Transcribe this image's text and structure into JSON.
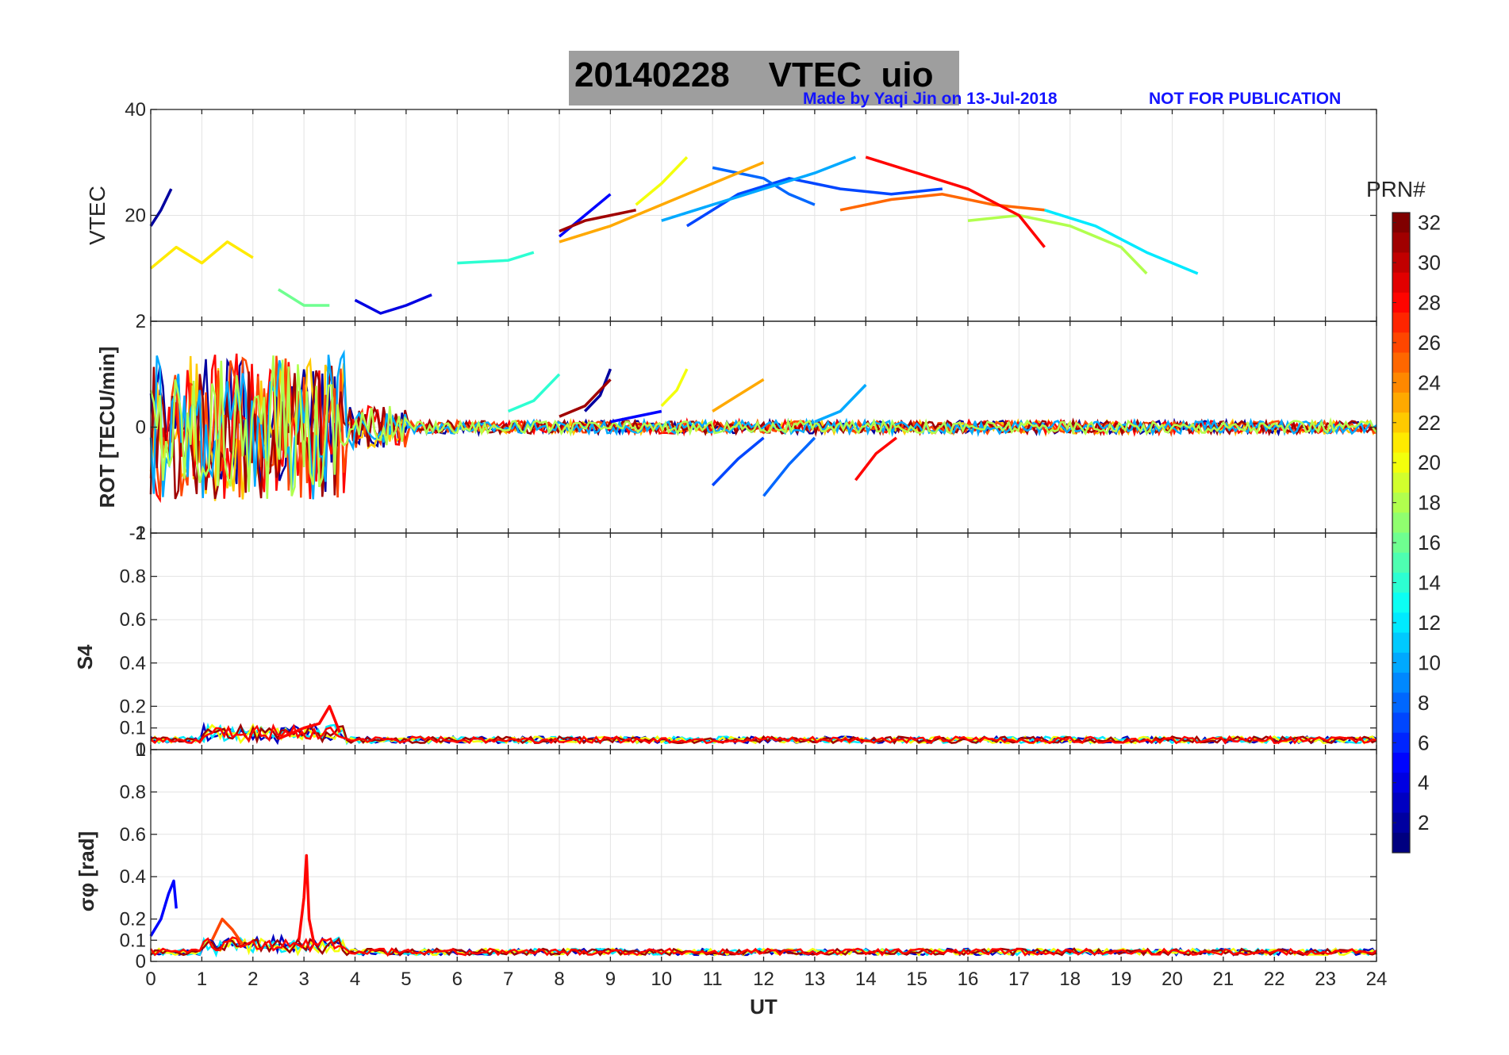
{
  "figure": {
    "title_date": "20140228",
    "title_rest": "VTEC  uio",
    "credit_left": "Made by Yaqi Jin on 13-Jul-2018",
    "credit_right": "NOT FOR PUBLICATION"
  },
  "chart_data": [
    {
      "type": "line",
      "id": "vtec",
      "ylabel": "VTEC",
      "xlim": [
        0,
        24
      ],
      "ylim": [
        0,
        40
      ],
      "yticks": [
        0,
        20,
        40
      ],
      "yticklabels": [
        "",
        "20",
        "40"
      ],
      "grid": true,
      "series": [
        {
          "prn": 2,
          "x": [
            0.0,
            0.2,
            0.4
          ],
          "y": [
            18,
            21,
            25
          ]
        },
        {
          "prn": 4,
          "x": [
            4.0,
            4.5,
            5.0,
            5.5
          ],
          "y": [
            4,
            1.5,
            3,
            5
          ]
        },
        {
          "prn": 5,
          "x": [
            8.0,
            8.5,
            9.0
          ],
          "y": [
            16,
            20,
            24
          ]
        },
        {
          "prn": 7,
          "x": [
            10.5,
            11.5,
            12.5,
            13.5,
            14.5,
            15.5
          ],
          "y": [
            18,
            24,
            27,
            25,
            24,
            25
          ]
        },
        {
          "prn": 8,
          "x": [
            11.0,
            12.0,
            12.5,
            13.0
          ],
          "y": [
            29,
            27,
            24,
            22
          ]
        },
        {
          "prn": 10,
          "x": [
            10.0,
            11.0,
            12.0,
            13.0,
            13.8
          ],
          "y": [
            19,
            22,
            25,
            28,
            31
          ]
        },
        {
          "prn": 12,
          "x": [
            17.5,
            18.5,
            19.5,
            20.5
          ],
          "y": [
            21,
            18,
            13,
            9
          ]
        },
        {
          "prn": 14,
          "x": [
            6.0,
            7.0,
            7.5
          ],
          "y": [
            11,
            11.5,
            13
          ]
        },
        {
          "prn": 16,
          "x": [
            2.5,
            3.0,
            3.5
          ],
          "y": [
            6,
            3,
            3
          ]
        },
        {
          "prn": 18,
          "x": [
            16.0,
            17.0,
            18.0,
            19.0,
            19.5
          ],
          "y": [
            19,
            20,
            18,
            14,
            9
          ]
        },
        {
          "prn": 20,
          "x": [
            9.5,
            10.0,
            10.5
          ],
          "y": [
            22,
            26,
            31
          ]
        },
        {
          "prn": 21,
          "x": [
            0.0,
            0.5,
            1.0,
            1.5,
            2.0
          ],
          "y": [
            10,
            14,
            11,
            15,
            12
          ]
        },
        {
          "prn": 23,
          "x": [
            8.0,
            9.0,
            10.0,
            11.0,
            12.0
          ],
          "y": [
            15,
            18,
            22,
            26,
            30
          ]
        },
        {
          "prn": 25,
          "x": [
            13.5,
            14.5,
            15.5,
            16.5,
            17.5
          ],
          "y": [
            21,
            23,
            24,
            22,
            21
          ]
        },
        {
          "prn": 28,
          "x": [
            14.0,
            15.0,
            16.0,
            17.0,
            17.5
          ],
          "y": [
            31,
            28,
            25,
            20,
            14
          ]
        },
        {
          "prn": 31,
          "x": [
            8.0,
            8.5,
            9.0,
            9.5
          ],
          "y": [
            17,
            19,
            20,
            21
          ]
        }
      ]
    },
    {
      "type": "line",
      "id": "rot",
      "ylabel": "ROT [TECU/min]",
      "xlim": [
        0,
        24
      ],
      "ylim": [
        -2,
        2
      ],
      "yticks": [
        -2,
        0,
        2
      ],
      "yticklabels": [
        "-2",
        "0",
        "2"
      ],
      "grid": true,
      "series": [
        {
          "prn": 2,
          "x": [
            8.5,
            8.8,
            9.0
          ],
          "y": [
            0.3,
            0.6,
            1.1
          ]
        },
        {
          "prn": 5,
          "x": [
            9.0,
            9.5,
            10.0
          ],
          "y": [
            0.1,
            0.2,
            0.3
          ]
        },
        {
          "prn": 7,
          "x": [
            11.0,
            11.5,
            12.0
          ],
          "y": [
            -1.1,
            -0.6,
            -0.2
          ]
        },
        {
          "prn": 8,
          "x": [
            12.0,
            12.5,
            13.0
          ],
          "y": [
            -1.3,
            -0.7,
            -0.2
          ]
        },
        {
          "prn": 10,
          "x": [
            13.0,
            13.5,
            14.0
          ],
          "y": [
            0.1,
            0.3,
            0.8
          ]
        },
        {
          "prn": 14,
          "x": [
            7.0,
            7.5,
            8.0
          ],
          "y": [
            0.3,
            0.5,
            1.0
          ]
        },
        {
          "prn": 20,
          "x": [
            10.0,
            10.3,
            10.5
          ],
          "y": [
            0.4,
            0.7,
            1.1
          ]
        },
        {
          "prn": 23,
          "x": [
            11.0,
            11.5,
            12.0
          ],
          "y": [
            0.3,
            0.6,
            0.9
          ]
        },
        {
          "prn": 28,
          "x": [
            13.8,
            14.2,
            14.6
          ],
          "y": [
            -1.0,
            -0.5,
            -0.2
          ]
        },
        {
          "prn": 31,
          "x": [
            8.0,
            8.5,
            9.0
          ],
          "y": [
            0.2,
            0.4,
            0.9
          ]
        }
      ]
    },
    {
      "type": "line",
      "id": "s4",
      "ylabel": "S4",
      "xlim": [
        0,
        24
      ],
      "ylim": [
        0,
        1
      ],
      "yticks": [
        0,
        0.1,
        0.2,
        0.4,
        0.6,
        0.8,
        1
      ],
      "yticklabels": [
        "0",
        "0.1",
        "0.2",
        "0.4",
        "0.6",
        "0.8",
        "1"
      ],
      "grid": true,
      "series": [
        {
          "prn": 28,
          "x": [
            2.5,
            3.0,
            3.3,
            3.5,
            3.7
          ],
          "y": [
            0.05,
            0.1,
            0.12,
            0.2,
            0.08
          ]
        }
      ]
    },
    {
      "type": "line",
      "id": "sigma_phi",
      "ylabel": "σφ [rad]",
      "xlim": [
        0,
        24
      ],
      "ylim": [
        0,
        1
      ],
      "yticks": [
        0,
        0.1,
        0.2,
        0.4,
        0.6,
        0.8,
        1
      ],
      "yticklabels": [
        "0",
        "0.1",
        "0.2",
        "0.4",
        "0.6",
        "0.8",
        "1"
      ],
      "xlabel": "UT",
      "xticks": [
        0,
        1,
        2,
        3,
        4,
        5,
        6,
        7,
        8,
        9,
        10,
        11,
        12,
        13,
        14,
        15,
        16,
        17,
        18,
        19,
        20,
        21,
        22,
        23,
        24
      ],
      "grid": true,
      "series": [
        {
          "prn": 5,
          "x": [
            0.0,
            0.2,
            0.35,
            0.45,
            0.5
          ],
          "y": [
            0.12,
            0.2,
            0.32,
            0.38,
            0.25
          ]
        },
        {
          "prn": 28,
          "x": [
            2.9,
            3.0,
            3.05,
            3.1,
            3.2
          ],
          "y": [
            0.1,
            0.3,
            0.5,
            0.2,
            0.08
          ]
        },
        {
          "prn": 26,
          "x": [
            1.2,
            1.4,
            1.6,
            1.8
          ],
          "y": [
            0.1,
            0.2,
            0.15,
            0.08
          ]
        }
      ]
    }
  ],
  "colorbar": {
    "label": "PRN#",
    "colormap": "jet",
    "range": [
      1,
      32
    ],
    "tick_values": [
      2,
      4,
      6,
      8,
      10,
      12,
      14,
      16,
      18,
      20,
      22,
      24,
      26,
      28,
      30,
      32
    ]
  }
}
